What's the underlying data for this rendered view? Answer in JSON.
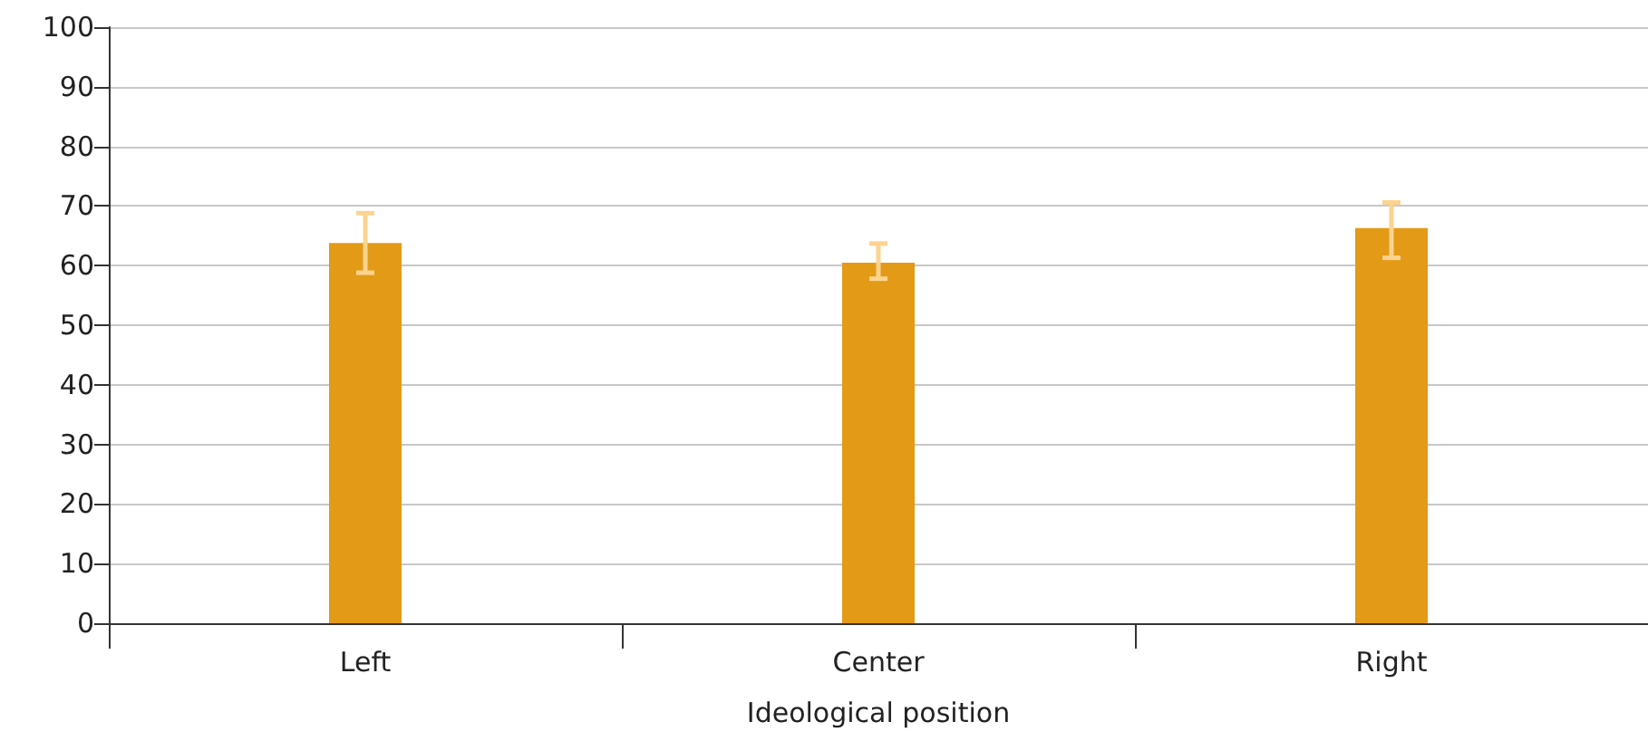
{
  "chart_data": {
    "type": "bar",
    "xlabel": "Ideological position",
    "categories": [
      "Left",
      "Center",
      "Right"
    ],
    "values": [
      63.8,
      60.5,
      66.3
    ],
    "color": "#e39a17",
    "errors": [
      [
        58.8,
        68.8
      ],
      [
        57.8,
        63.7
      ],
      [
        61.3,
        70.6
      ]
    ],
    "ylim": [
      0,
      100
    ],
    "yticks": [
      0,
      10,
      20,
      30,
      40,
      50,
      60,
      70,
      80,
      90,
      100
    ],
    "grid": "y"
  }
}
